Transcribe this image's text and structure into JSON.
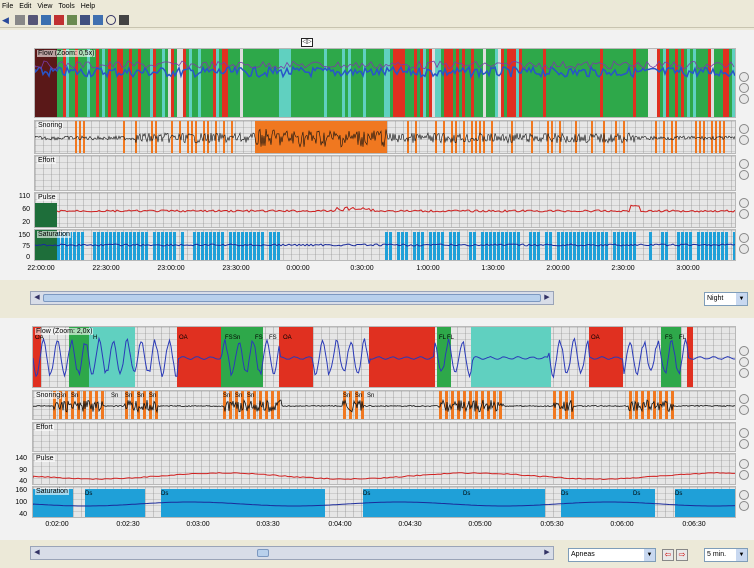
{
  "menu": [
    "File",
    "Edit",
    "View",
    "Tools",
    "Help"
  ],
  "toolbar_icons": [
    "back-icon",
    "stop-icon",
    "print-icon",
    "chart-icon",
    "record-icon",
    "db-icon",
    "monitor-icon",
    "network-icon",
    "help-icon",
    "tape-icon"
  ],
  "overview": {
    "tracks": {
      "flow": "Flow (Zoom: 0,5x)",
      "snoring": "Snoring",
      "effort": "Effort",
      "pulse": "Pulse",
      "saturation": "Saturation"
    },
    "pulse_ticks": [
      "110",
      "60",
      "20"
    ],
    "saturation_ticks": [
      "150",
      "75",
      "0"
    ],
    "time_labels": [
      "22:00:00",
      "22:30:00",
      "23:00:00",
      "23:30:00",
      "0:00:00",
      "0:30:00",
      "1:00:00",
      "1:30:00",
      "2:00:00",
      "2:30:00",
      "3:00:00"
    ],
    "view_select": "Night"
  },
  "detail": {
    "tracks": {
      "flow": "Flow (Zoom: 2,0x)",
      "snoring": "Snoring",
      "effort": "Effort",
      "pulse": "Pulse",
      "saturation": "Saturation"
    },
    "pulse_ticks": [
      "140",
      "90",
      "40"
    ],
    "saturation_ticks": [
      "160",
      "100",
      "40"
    ],
    "time_labels": [
      "0:02:00",
      "0:02:30",
      "0:03:00",
      "0:03:30",
      "0:04:00",
      "0:04:30",
      "0:05:00",
      "0:05:30",
      "0:06:00",
      "0:06:30"
    ],
    "event_labels": [
      "OA",
      "H",
      "OA",
      "FS",
      "Sn",
      "FS",
      "FS",
      "OA",
      "FL",
      "FL",
      "OA",
      "FS",
      "FL"
    ],
    "snore_labels": [
      "Sn",
      "Sn",
      "Sn",
      "Sn",
      "Sn",
      "Sn",
      "Sn",
      "Sn",
      "Sn",
      "Sn",
      "Sn",
      "Sn"
    ],
    "sat_labels": [
      "Ds",
      "Ds",
      "Ds",
      "Ds",
      "Ds",
      "Ds",
      "Ds"
    ],
    "event_select": "Apneas",
    "window_select": "5 min."
  },
  "colors": {
    "flow_green": "#2ea84a",
    "flow_blue": "#2855c8",
    "flow_red": "#e03020",
    "flow_teal": "#60d0c0",
    "snore_orange": "#f07820",
    "pulse_red": "#d02020",
    "sat_blue": "#1fa0d8"
  }
}
